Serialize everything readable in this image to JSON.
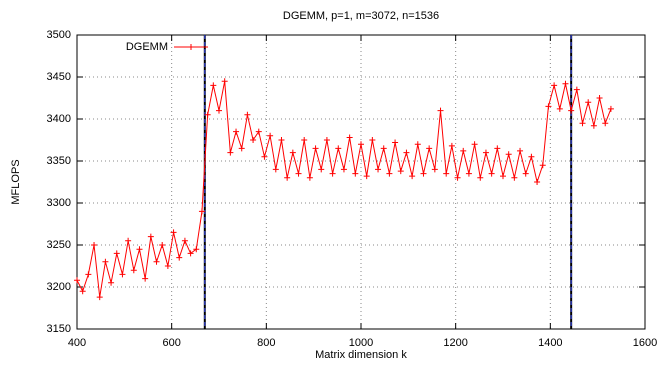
{
  "chart_data": {
    "type": "line",
    "title": "DGEMM, p=1, m=3072, n=1536",
    "x_label": "Matrix dimension k",
    "y_label": "MFLOPS",
    "x": [
      400,
      412,
      424,
      436,
      448,
      460,
      472,
      484,
      496,
      508,
      520,
      532,
      544,
      556,
      568,
      580,
      592,
      604,
      616,
      628,
      640,
      652,
      664,
      676,
      688,
      700,
      712,
      724,
      736,
      748,
      760,
      772,
      784,
      796,
      808,
      820,
      832,
      844,
      856,
      868,
      880,
      892,
      904,
      916,
      928,
      940,
      952,
      964,
      976,
      988,
      1000,
      1012,
      1024,
      1036,
      1048,
      1060,
      1072,
      1084,
      1096,
      1108,
      1120,
      1132,
      1144,
      1156,
      1168,
      1180,
      1192,
      1204,
      1216,
      1228,
      1240,
      1252,
      1264,
      1276,
      1288,
      1300,
      1312,
      1324,
      1336,
      1348,
      1360,
      1372,
      1384,
      1396,
      1408,
      1420,
      1432,
      1444,
      1456,
      1468,
      1480,
      1492,
      1504,
      1516,
      1528
    ],
    "series": [
      {
        "name": "DGEMM",
        "color": "#ff0000",
        "values": [
          3208,
          3195,
          3215,
          3250,
          3188,
          3230,
          3205,
          3240,
          3215,
          3255,
          3220,
          3245,
          3210,
          3260,
          3230,
          3250,
          3225,
          3265,
          3235,
          3255,
          3240,
          3245,
          3290,
          3405,
          3440,
          3410,
          3445,
          3360,
          3385,
          3365,
          3405,
          3375,
          3385,
          3355,
          3380,
          3340,
          3375,
          3330,
          3360,
          3335,
          3375,
          3330,
          3365,
          3340,
          3375,
          3335,
          3365,
          3340,
          3378,
          3335,
          3370,
          3332,
          3375,
          3340,
          3365,
          3335,
          3372,
          3338,
          3360,
          3332,
          3370,
          3335,
          3365,
          3340,
          3410,
          3335,
          3368,
          3330,
          3362,
          3335,
          3370,
          3330,
          3360,
          3335,
          3365,
          3332,
          3358,
          3330,
          3362,
          3335,
          3355,
          3325,
          3345,
          3415,
          3440,
          3412,
          3442,
          3410,
          3435,
          3395,
          3420,
          3392,
          3425,
          3395,
          3412
        ]
      }
    ],
    "vlines": [
      670,
      1444
    ],
    "xlim": [
      400,
      1600
    ],
    "xticks": [
      400,
      600,
      800,
      1000,
      1200,
      1400,
      1600
    ],
    "ylim": [
      3150,
      3500
    ],
    "yticks": [
      3150,
      3200,
      3250,
      3300,
      3350,
      3400,
      3450,
      3500
    ],
    "grid": true,
    "legend": "upper left"
  }
}
